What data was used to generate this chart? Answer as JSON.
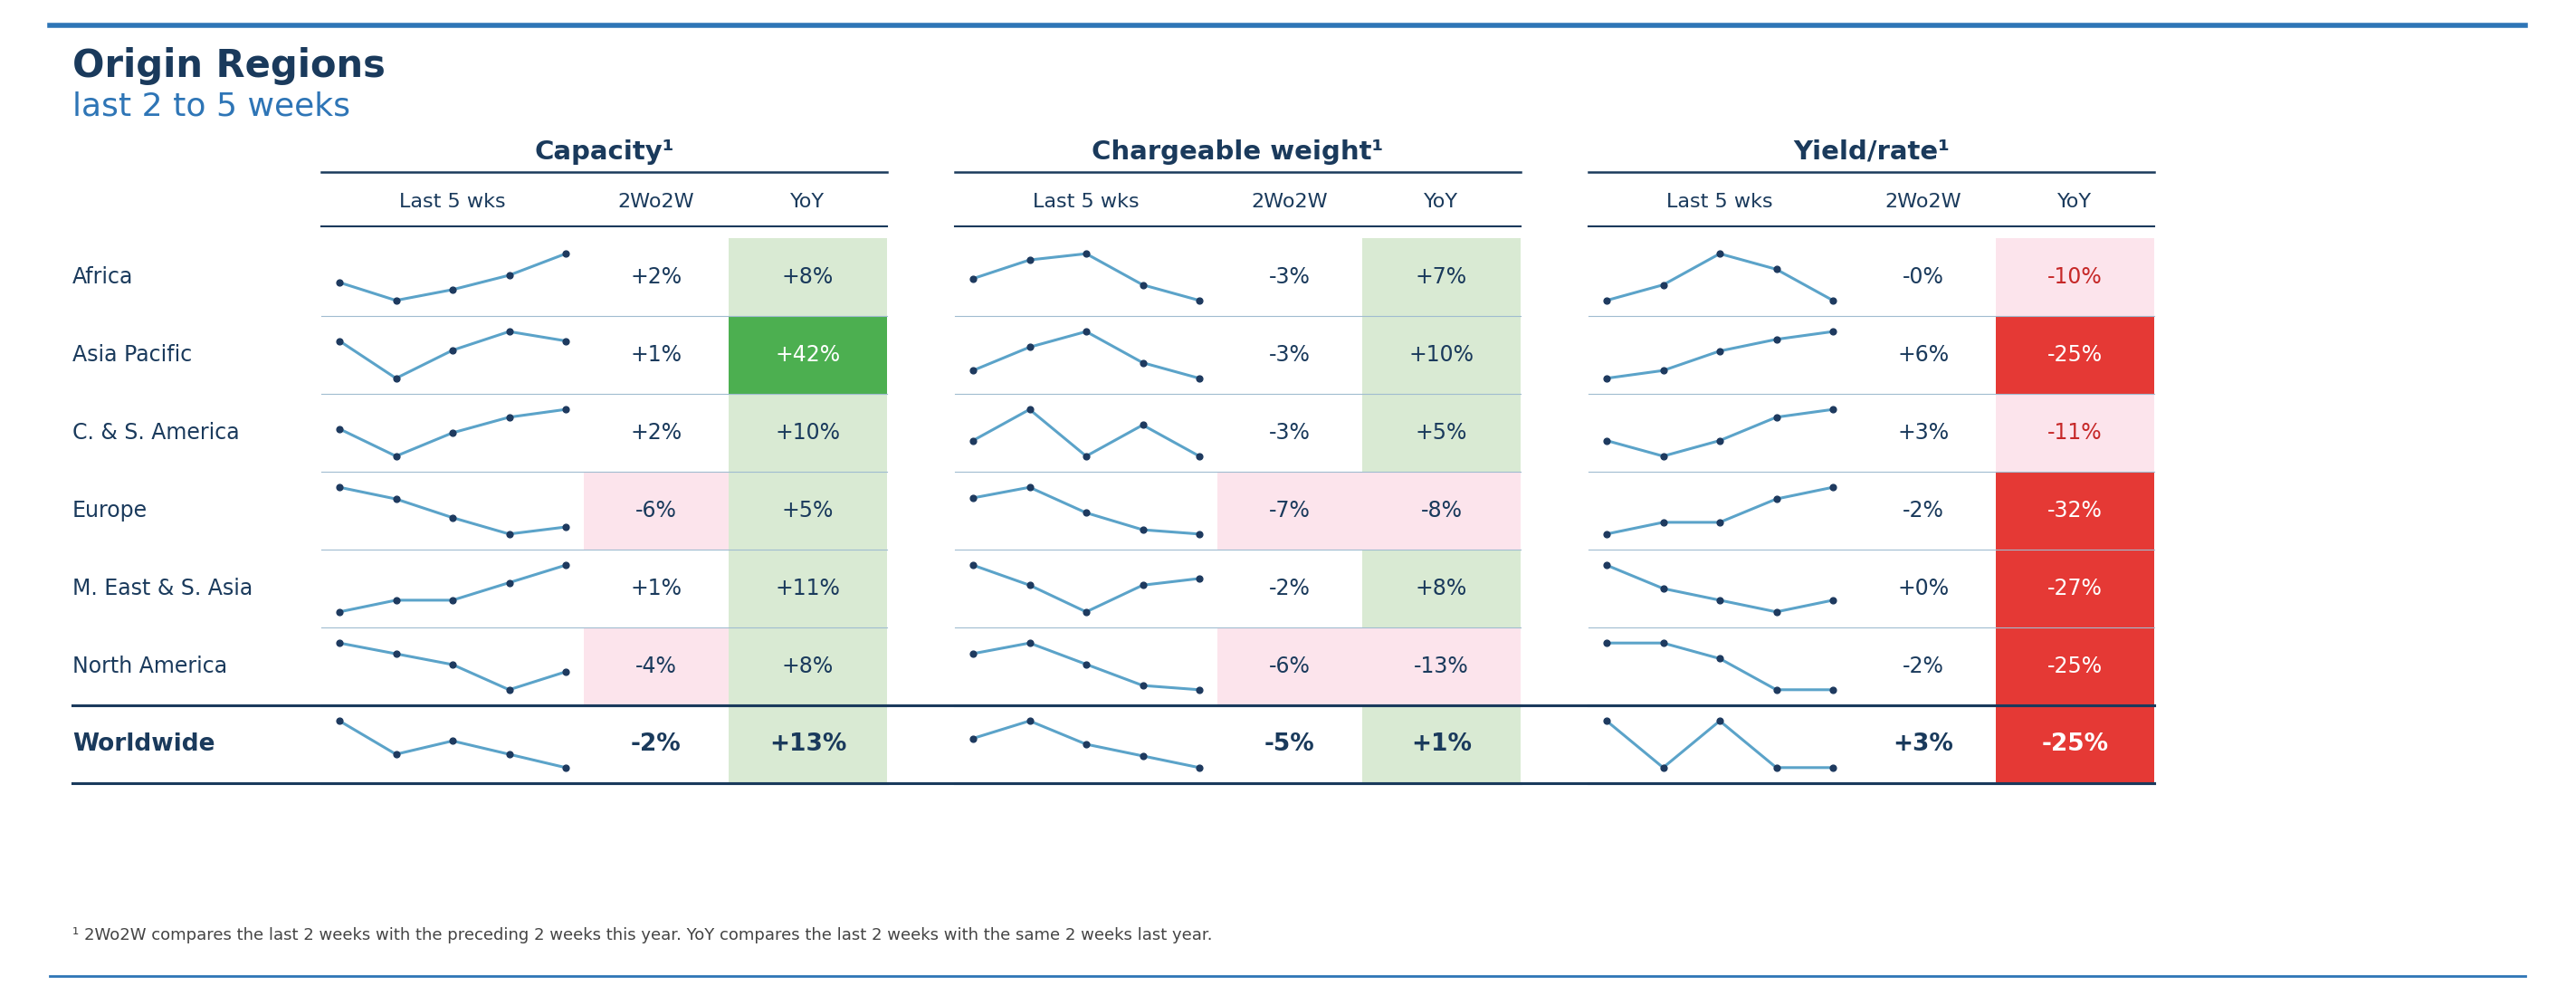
{
  "title": "Origin Regions",
  "subtitle": "last 2 to 5 weeks",
  "footnote": "¹ 2Wo2W compares the last 2 weeks with the preceding 2 weeks this year. YoY compares the last 2 weeks with the same 2 weeks last year.",
  "sections": [
    "Capacity¹",
    "Chargeable weight¹",
    "Yield/rate¹"
  ],
  "regions": [
    "Africa",
    "Asia Pacific",
    "C. & S. America",
    "Europe",
    "M. East & S. Asia",
    "North America",
    "Worldwide"
  ],
  "region_bold": [
    false,
    false,
    false,
    false,
    false,
    false,
    true
  ],
  "capacity": {
    "w2w": [
      "+2%",
      "+1%",
      "+2%",
      "-6%",
      "+1%",
      "-4%",
      "-2%"
    ],
    "yoy": [
      "+8%",
      "+42%",
      "+10%",
      "+5%",
      "+11%",
      "+8%",
      "+13%"
    ],
    "w2w_bg": [
      "white",
      "white",
      "white",
      "#fce4ec",
      "white",
      "#fce4ec",
      "white"
    ],
    "yoy_bg": [
      "#d9ead3",
      "#4caf50",
      "#d9ead3",
      "#d9ead3",
      "#d9ead3",
      "#d9ead3",
      "#d9ead3"
    ],
    "w2w_color": [
      "#1a3a5c",
      "#1a3a5c",
      "#1a3a5c",
      "#1a3a5c",
      "#1a3a5c",
      "#1a3a5c",
      "#1a3a5c"
    ],
    "yoy_color": [
      "#1a3a5c",
      "white",
      "#1a3a5c",
      "#1a3a5c",
      "#1a3a5c",
      "#1a3a5c",
      "#1a3a5c"
    ],
    "sparklines": [
      [
        0.2,
        0.15,
        0.18,
        0.22,
        0.28
      ],
      [
        0.3,
        0.22,
        0.28,
        0.32,
        0.3
      ],
      [
        0.25,
        0.18,
        0.24,
        0.28,
        0.3
      ],
      [
        0.35,
        0.3,
        0.22,
        0.15,
        0.18
      ],
      [
        0.2,
        0.22,
        0.22,
        0.25,
        0.28
      ],
      [
        0.28,
        0.25,
        0.22,
        0.15,
        0.2
      ],
      [
        0.25,
        0.2,
        0.22,
        0.2,
        0.18
      ]
    ]
  },
  "chargeable": {
    "w2w": [
      "-3%",
      "-3%",
      "-3%",
      "-7%",
      "-2%",
      "-6%",
      "-5%"
    ],
    "yoy": [
      "+7%",
      "+10%",
      "+5%",
      "-8%",
      "+8%",
      "-13%",
      "+1%"
    ],
    "w2w_bg": [
      "white",
      "white",
      "white",
      "#fce4ec",
      "white",
      "#fce4ec",
      "white"
    ],
    "yoy_bg": [
      "#d9ead3",
      "#d9ead3",
      "#d9ead3",
      "#fce4ec",
      "#d9ead3",
      "#fce4ec",
      "#d9ead3"
    ],
    "w2w_color": [
      "#1a3a5c",
      "#1a3a5c",
      "#1a3a5c",
      "#1a3a5c",
      "#1a3a5c",
      "#1a3a5c",
      "#1a3a5c"
    ],
    "yoy_color": [
      "#1a3a5c",
      "#1a3a5c",
      "#1a3a5c",
      "#1a3a5c",
      "#1a3a5c",
      "#1a3a5c",
      "#1a3a5c"
    ],
    "sparklines": [
      [
        0.32,
        0.38,
        0.4,
        0.3,
        0.25
      ],
      [
        0.3,
        0.36,
        0.4,
        0.32,
        0.28
      ],
      [
        0.3,
        0.34,
        0.28,
        0.32,
        0.28
      ],
      [
        0.35,
        0.4,
        0.28,
        0.2,
        0.18
      ],
      [
        0.32,
        0.26,
        0.18,
        0.26,
        0.28
      ],
      [
        0.35,
        0.4,
        0.3,
        0.2,
        0.18
      ],
      [
        0.32,
        0.38,
        0.3,
        0.26,
        0.22
      ]
    ]
  },
  "yield": {
    "w2w": [
      "-0%",
      "+6%",
      "+3%",
      "-2%",
      "+0%",
      "-2%",
      "+3%"
    ],
    "yoy": [
      "-10%",
      "-25%",
      "-11%",
      "-32%",
      "-27%",
      "-25%",
      "-25%"
    ],
    "w2w_bg": [
      "white",
      "white",
      "white",
      "white",
      "white",
      "white",
      "white"
    ],
    "yoy_bg": [
      "#fce4ec",
      "#e53935",
      "#fce4ec",
      "#e53935",
      "#e53935",
      "#e53935",
      "#e53935"
    ],
    "w2w_color": [
      "#1a3a5c",
      "#1a3a5c",
      "#1a3a5c",
      "#1a3a5c",
      "#1a3a5c",
      "#1a3a5c",
      "#1a3a5c"
    ],
    "yoy_color": [
      "#c62828",
      "white",
      "#c62828",
      "white",
      "white",
      "white",
      "white"
    ],
    "sparklines": [
      [
        0.22,
        0.23,
        0.25,
        0.24,
        0.22
      ],
      [
        0.18,
        0.2,
        0.25,
        0.28,
        0.3
      ],
      [
        0.22,
        0.2,
        0.22,
        0.25,
        0.26
      ],
      [
        0.24,
        0.25,
        0.25,
        0.27,
        0.28
      ],
      [
        0.28,
        0.24,
        0.22,
        0.2,
        0.22
      ],
      [
        0.25,
        0.25,
        0.24,
        0.22,
        0.22
      ],
      [
        0.22,
        0.2,
        0.22,
        0.2,
        0.2
      ]
    ]
  },
  "dark_blue": "#1a3a5c",
  "medium_blue": "#2e75b6",
  "spark_color": "#5ba3c9"
}
